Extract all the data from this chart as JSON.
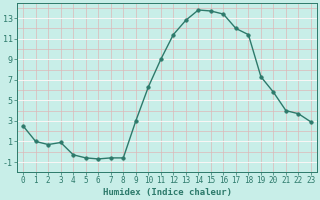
{
  "x": [
    0,
    1,
    2,
    3,
    4,
    5,
    6,
    7,
    8,
    9,
    10,
    11,
    12,
    13,
    14,
    15,
    16,
    17,
    18,
    19,
    20,
    21,
    22,
    23
  ],
  "y": [
    2.5,
    1.0,
    0.7,
    0.9,
    -0.3,
    -0.6,
    -0.7,
    -0.6,
    -0.6,
    3.0,
    6.3,
    9.0,
    11.4,
    12.8,
    13.8,
    13.7,
    13.4,
    12.0,
    11.4,
    7.3,
    5.8,
    4.0,
    3.7,
    2.9
  ],
  "line_color": "#2d7a6b",
  "marker": "o",
  "marker_size": 2.5,
  "xlabel": "Humidex (Indice chaleur)",
  "bg_color": "#c8eee8",
  "grid_major_color": "#ddb8b8",
  "grid_white_color": "#ffffff",
  "ylim": [
    -2,
    14.5
  ],
  "xlim": [
    -0.5,
    23.5
  ],
  "yticks": [
    -1,
    1,
    3,
    5,
    7,
    9,
    11,
    13
  ],
  "xticks": [
    0,
    1,
    2,
    3,
    4,
    5,
    6,
    7,
    8,
    9,
    10,
    11,
    12,
    13,
    14,
    15,
    16,
    17,
    18,
    19,
    20,
    21,
    22,
    23
  ],
  "xlabel_fontsize": 6.5,
  "tick_fontsize": 5.5
}
